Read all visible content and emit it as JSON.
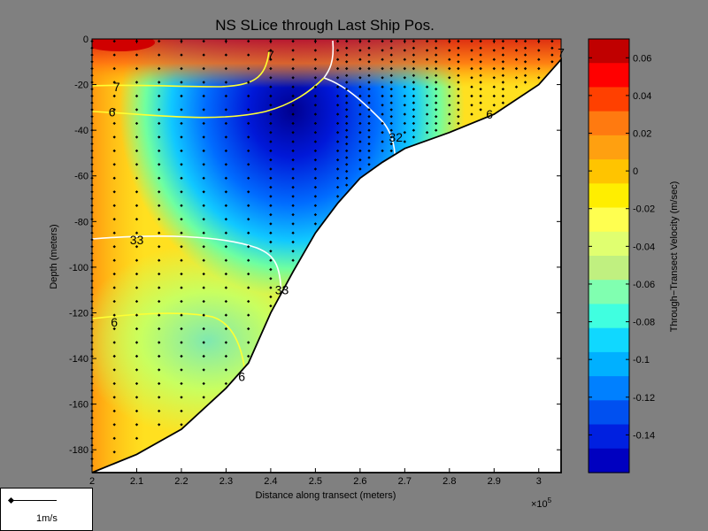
{
  "chart_data": {
    "type": "contourf",
    "title": "NS SLice through Last Ship Pos.",
    "xlabel": "Distance along transect (meters)",
    "ylabel": "Depth (meters)",
    "x_multiplier_label": "×10",
    "x_multiplier_exp": "5",
    "xlim": [
      2.0,
      3.05
    ],
    "ylim": [
      -190,
      0
    ],
    "x_ticks": [
      "2",
      "2.1",
      "2.2",
      "2.3",
      "2.4",
      "2.5",
      "2.6",
      "2.7",
      "2.8",
      "2.9",
      "3"
    ],
    "y_ticks": [
      "0",
      "-20",
      "-40",
      "-60",
      "-80",
      "-100",
      "-120",
      "-140",
      "-160",
      "-180"
    ],
    "colorbar": {
      "label": "Through−Transect Velocity (m/sec)",
      "range": [
        -0.16,
        0.07
      ],
      "ticks": [
        "0.06",
        "0.04",
        "0.02",
        "0",
        "-0.02",
        "-0.04",
        "-0.06",
        "-0.08",
        "-0.1",
        "-0.12",
        "-0.14"
      ]
    },
    "bottom_profile": [
      {
        "x": 2.0,
        "depth": -190
      },
      {
        "x": 2.1,
        "depth": -182
      },
      {
        "x": 2.2,
        "depth": -171
      },
      {
        "x": 2.3,
        "depth": -153
      },
      {
        "x": 2.35,
        "depth": -142
      },
      {
        "x": 2.4,
        "depth": -120
      },
      {
        "x": 2.45,
        "depth": -102
      },
      {
        "x": 2.5,
        "depth": -85
      },
      {
        "x": 2.55,
        "depth": -72
      },
      {
        "x": 2.6,
        "depth": -61
      },
      {
        "x": 2.65,
        "depth": -54
      },
      {
        "x": 2.7,
        "depth": -48
      },
      {
        "x": 2.8,
        "depth": -41
      },
      {
        "x": 2.9,
        "depth": -33
      },
      {
        "x": 3.0,
        "depth": -20
      },
      {
        "x": 3.05,
        "depth": -9
      }
    ],
    "contour_labels": [
      {
        "text": "7",
        "x": 2.055,
        "depth": -21
      },
      {
        "text": "6",
        "x": 2.045,
        "depth": -32
      },
      {
        "text": "33",
        "x": 2.1,
        "depth": -88
      },
      {
        "text": "33",
        "x": 2.425,
        "depth": -110
      },
      {
        "text": "6",
        "x": 2.05,
        "depth": -124
      },
      {
        "text": "6",
        "x": 2.335,
        "depth": -148
      },
      {
        "text": "7",
        "x": 2.4,
        "depth": -7
      },
      {
        "text": "32",
        "x": 2.68,
        "depth": -43
      },
      {
        "text": "6",
        "x": 2.89,
        "depth": -33
      },
      {
        "text": "7",
        "x": 3.05,
        "depth": -6
      }
    ]
  },
  "legend": {
    "label": "1m/s"
  }
}
